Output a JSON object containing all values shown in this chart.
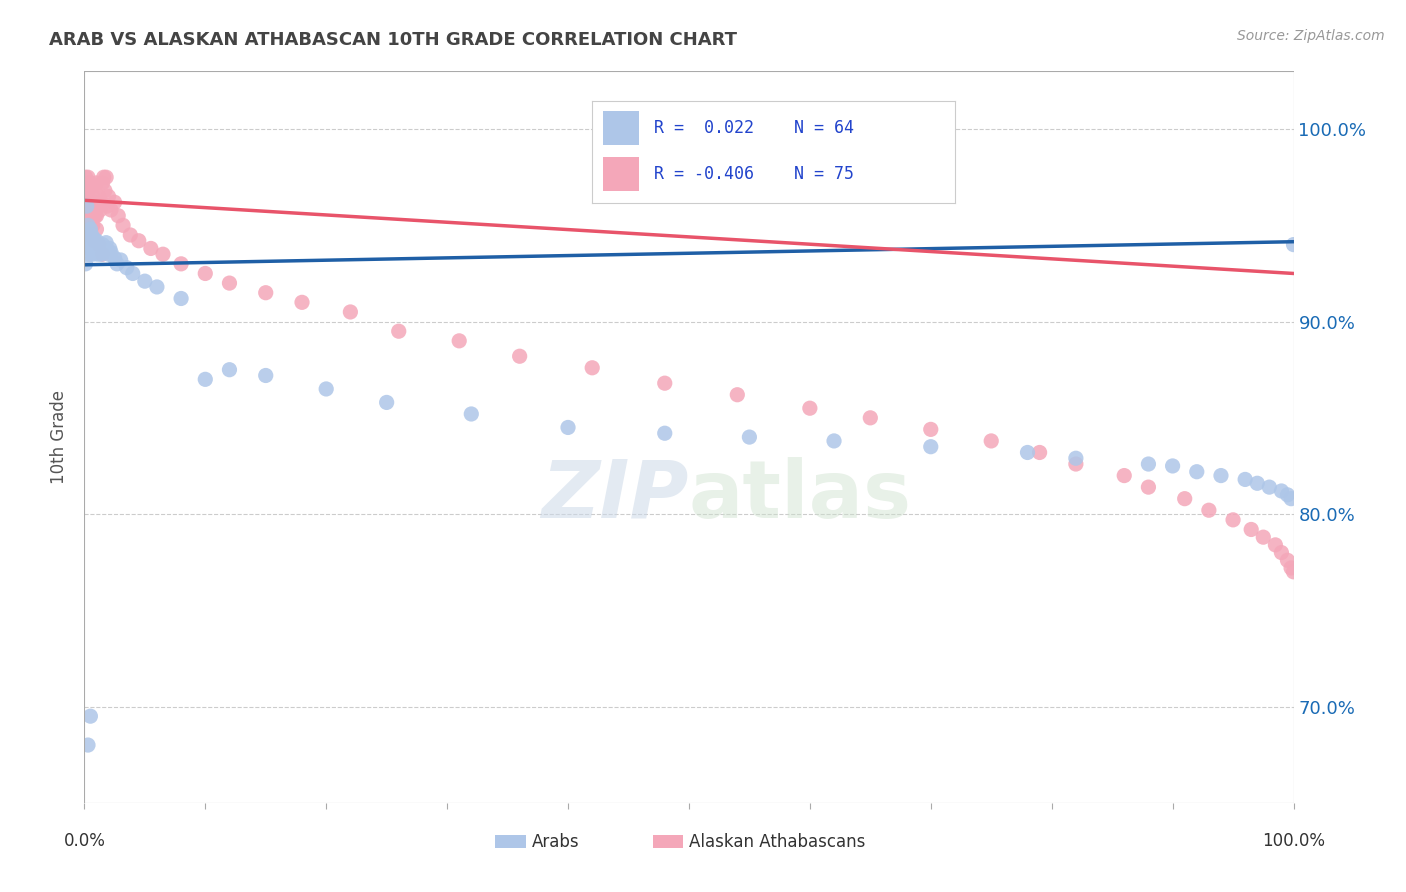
{
  "title": "ARAB VS ALASKAN ATHABASCAN 10TH GRADE CORRELATION CHART",
  "source": "Source: ZipAtlas.com",
  "ylabel": "10th Grade",
  "ytick_values": [
    0.7,
    0.8,
    0.9,
    1.0
  ],
  "legend_arab_r": "R =  0.022",
  "legend_arab_n": "N = 64",
  "legend_alaskan_r": "R = -0.406",
  "legend_alaskan_n": "N = 75",
  "arab_color": "#aec6e8",
  "alaskan_color": "#f4a7b9",
  "arab_line_color": "#1f5fa6",
  "alaskan_line_color": "#e8546a",
  "background_color": "#ffffff",
  "grid_color": "#cccccc",
  "title_color": "#444444",
  "source_color": "#999999",
  "legend_text_color": "#2244cc",
  "xlim": [
    0.0,
    1.0
  ],
  "ylim": [
    0.65,
    1.03
  ],
  "arab_trend_x": [
    0.0,
    1.0
  ],
  "arab_trend_y": [
    0.9295,
    0.9415
  ],
  "alaskan_trend_x": [
    0.0,
    1.0
  ],
  "alaskan_trend_y": [
    0.963,
    0.925
  ],
  "arab_scatter_x": [
    0.001,
    0.002,
    0.002,
    0.003,
    0.003,
    0.004,
    0.004,
    0.005,
    0.005,
    0.006,
    0.006,
    0.007,
    0.007,
    0.008,
    0.008,
    0.009,
    0.01,
    0.01,
    0.011,
    0.012,
    0.013,
    0.014,
    0.015,
    0.016,
    0.017,
    0.018,
    0.019,
    0.02,
    0.021,
    0.022,
    0.025,
    0.027,
    0.03,
    0.035,
    0.04,
    0.05,
    0.06,
    0.08,
    0.1,
    0.12,
    0.15,
    0.2,
    0.25,
    0.32,
    0.4,
    0.48,
    0.55,
    0.62,
    0.7,
    0.78,
    0.82,
    0.88,
    0.9,
    0.92,
    0.94,
    0.96,
    0.97,
    0.98,
    0.99,
    0.995,
    0.998,
    1.0,
    0.003,
    0.005
  ],
  "arab_scatter_y": [
    0.93,
    0.96,
    0.945,
    0.938,
    0.95,
    0.935,
    0.942,
    0.94,
    0.948,
    0.938,
    0.945,
    0.935,
    0.94,
    0.938,
    0.943,
    0.936,
    0.942,
    0.938,
    0.935,
    0.94,
    0.937,
    0.935,
    0.94,
    0.936,
    0.938,
    0.941,
    0.937,
    0.935,
    0.938,
    0.936,
    0.933,
    0.93,
    0.932,
    0.928,
    0.925,
    0.921,
    0.918,
    0.912,
    0.87,
    0.875,
    0.872,
    0.865,
    0.858,
    0.852,
    0.845,
    0.842,
    0.84,
    0.838,
    0.835,
    0.832,
    0.829,
    0.826,
    0.825,
    0.822,
    0.82,
    0.818,
    0.816,
    0.814,
    0.812,
    0.81,
    0.808,
    0.94,
    0.68,
    0.695
  ],
  "alaskan_scatter_x": [
    0.001,
    0.002,
    0.003,
    0.003,
    0.004,
    0.005,
    0.005,
    0.006,
    0.006,
    0.007,
    0.007,
    0.008,
    0.008,
    0.009,
    0.01,
    0.01,
    0.011,
    0.012,
    0.013,
    0.014,
    0.015,
    0.016,
    0.017,
    0.018,
    0.019,
    0.02,
    0.022,
    0.025,
    0.028,
    0.032,
    0.038,
    0.045,
    0.055,
    0.065,
    0.08,
    0.1,
    0.12,
    0.15,
    0.18,
    0.22,
    0.26,
    0.31,
    0.36,
    0.42,
    0.48,
    0.54,
    0.6,
    0.65,
    0.7,
    0.75,
    0.79,
    0.82,
    0.86,
    0.88,
    0.91,
    0.93,
    0.95,
    0.965,
    0.975,
    0.985,
    0.99,
    0.995,
    0.998,
    1.0,
    0.002,
    0.003,
    0.004,
    0.005,
    0.006,
    0.007,
    0.008,
    0.009,
    0.01,
    0.012,
    0.015
  ],
  "alaskan_scatter_y": [
    0.975,
    0.968,
    0.975,
    0.965,
    0.96,
    0.972,
    0.958,
    0.97,
    0.962,
    0.965,
    0.958,
    0.962,
    0.955,
    0.96,
    0.972,
    0.955,
    0.96,
    0.965,
    0.958,
    0.962,
    0.972,
    0.975,
    0.968,
    0.975,
    0.96,
    0.965,
    0.958,
    0.962,
    0.955,
    0.95,
    0.945,
    0.942,
    0.938,
    0.935,
    0.93,
    0.925,
    0.92,
    0.915,
    0.91,
    0.905,
    0.895,
    0.89,
    0.882,
    0.876,
    0.868,
    0.862,
    0.855,
    0.85,
    0.844,
    0.838,
    0.832,
    0.826,
    0.82,
    0.814,
    0.808,
    0.802,
    0.797,
    0.792,
    0.788,
    0.784,
    0.78,
    0.776,
    0.772,
    0.77,
    0.955,
    0.948,
    0.952,
    0.945,
    0.958,
    0.95,
    0.942,
    0.955,
    0.948,
    0.94,
    0.935
  ]
}
